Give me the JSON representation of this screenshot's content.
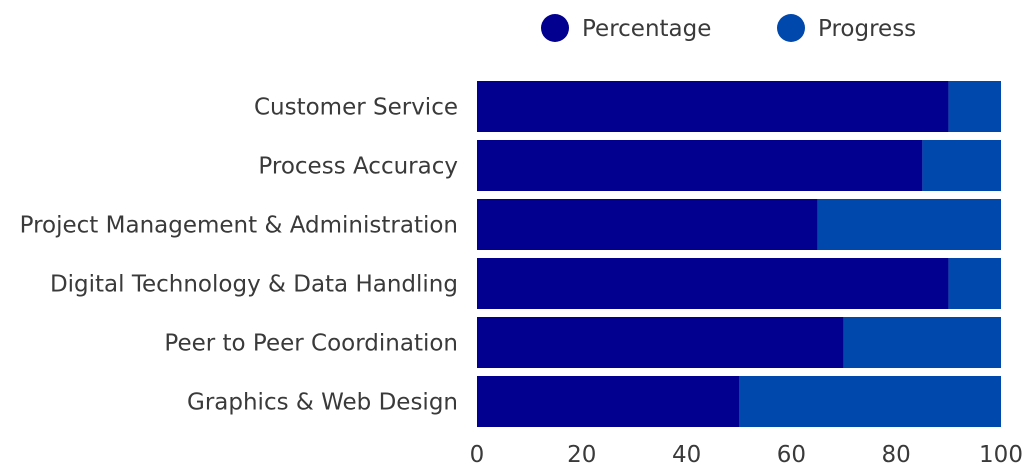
{
  "chart_data": {
    "type": "bar",
    "orientation": "horizontal",
    "stacked": true,
    "categories": [
      "Customer Service",
      "Process Accuracy",
      "Project Management & Administration",
      "Digital Technology & Data Handling",
      "Peer to Peer Coordination",
      "Graphics & Web Design"
    ],
    "series": [
      {
        "name": "Percentage",
        "color": "#02008E",
        "values": [
          90,
          85,
          65,
          90,
          70,
          50
        ]
      },
      {
        "name": "Progress",
        "color": "#0048AB",
        "values": [
          10,
          15,
          35,
          10,
          30,
          50
        ]
      }
    ],
    "xlim": [
      0,
      100
    ],
    "xticks": [
      0,
      20,
      40,
      60,
      80,
      100
    ],
    "grid": false,
    "legend_position": "top-right",
    "colors": {
      "text": "#3a3a3a"
    }
  }
}
